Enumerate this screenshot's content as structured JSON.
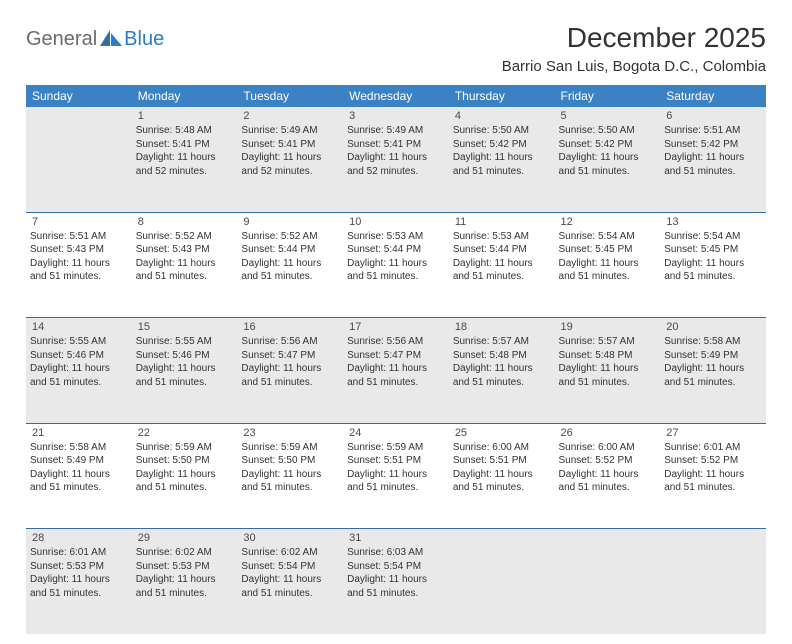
{
  "brand": {
    "general": "General",
    "blue": "Blue"
  },
  "title": "December 2025",
  "location": "Barrio San Luis, Bogota D.C., Colombia",
  "colors": {
    "header_bg": "#3b82c4",
    "header_text": "#ffffff",
    "rule": "#2f6fa8",
    "shade": "#e9e9e9",
    "text": "#333333",
    "logo_gray": "#6b6b6b",
    "logo_blue": "#2f7bbf"
  },
  "day_names": [
    "Sunday",
    "Monday",
    "Tuesday",
    "Wednesday",
    "Thursday",
    "Friday",
    "Saturday"
  ],
  "weeks": [
    {
      "shaded": true,
      "days": [
        {
          "n": "",
          "lines": []
        },
        {
          "n": "1",
          "lines": [
            "Sunrise: 5:48 AM",
            "Sunset: 5:41 PM",
            "Daylight: 11 hours and 52 minutes."
          ]
        },
        {
          "n": "2",
          "lines": [
            "Sunrise: 5:49 AM",
            "Sunset: 5:41 PM",
            "Daylight: 11 hours and 52 minutes."
          ]
        },
        {
          "n": "3",
          "lines": [
            "Sunrise: 5:49 AM",
            "Sunset: 5:41 PM",
            "Daylight: 11 hours and 52 minutes."
          ]
        },
        {
          "n": "4",
          "lines": [
            "Sunrise: 5:50 AM",
            "Sunset: 5:42 PM",
            "Daylight: 11 hours and 51 minutes."
          ]
        },
        {
          "n": "5",
          "lines": [
            "Sunrise: 5:50 AM",
            "Sunset: 5:42 PM",
            "Daylight: 11 hours and 51 minutes."
          ]
        },
        {
          "n": "6",
          "lines": [
            "Sunrise: 5:51 AM",
            "Sunset: 5:42 PM",
            "Daylight: 11 hours and 51 minutes."
          ]
        }
      ]
    },
    {
      "shaded": false,
      "days": [
        {
          "n": "7",
          "lines": [
            "Sunrise: 5:51 AM",
            "Sunset: 5:43 PM",
            "Daylight: 11 hours and 51 minutes."
          ]
        },
        {
          "n": "8",
          "lines": [
            "Sunrise: 5:52 AM",
            "Sunset: 5:43 PM",
            "Daylight: 11 hours and 51 minutes."
          ]
        },
        {
          "n": "9",
          "lines": [
            "Sunrise: 5:52 AM",
            "Sunset: 5:44 PM",
            "Daylight: 11 hours and 51 minutes."
          ]
        },
        {
          "n": "10",
          "lines": [
            "Sunrise: 5:53 AM",
            "Sunset: 5:44 PM",
            "Daylight: 11 hours and 51 minutes."
          ]
        },
        {
          "n": "11",
          "lines": [
            "Sunrise: 5:53 AM",
            "Sunset: 5:44 PM",
            "Daylight: 11 hours and 51 minutes."
          ]
        },
        {
          "n": "12",
          "lines": [
            "Sunrise: 5:54 AM",
            "Sunset: 5:45 PM",
            "Daylight: 11 hours and 51 minutes."
          ]
        },
        {
          "n": "13",
          "lines": [
            "Sunrise: 5:54 AM",
            "Sunset: 5:45 PM",
            "Daylight: 11 hours and 51 minutes."
          ]
        }
      ]
    },
    {
      "shaded": true,
      "days": [
        {
          "n": "14",
          "lines": [
            "Sunrise: 5:55 AM",
            "Sunset: 5:46 PM",
            "Daylight: 11 hours and 51 minutes."
          ]
        },
        {
          "n": "15",
          "lines": [
            "Sunrise: 5:55 AM",
            "Sunset: 5:46 PM",
            "Daylight: 11 hours and 51 minutes."
          ]
        },
        {
          "n": "16",
          "lines": [
            "Sunrise: 5:56 AM",
            "Sunset: 5:47 PM",
            "Daylight: 11 hours and 51 minutes."
          ]
        },
        {
          "n": "17",
          "lines": [
            "Sunrise: 5:56 AM",
            "Sunset: 5:47 PM",
            "Daylight: 11 hours and 51 minutes."
          ]
        },
        {
          "n": "18",
          "lines": [
            "Sunrise: 5:57 AM",
            "Sunset: 5:48 PM",
            "Daylight: 11 hours and 51 minutes."
          ]
        },
        {
          "n": "19",
          "lines": [
            "Sunrise: 5:57 AM",
            "Sunset: 5:48 PM",
            "Daylight: 11 hours and 51 minutes."
          ]
        },
        {
          "n": "20",
          "lines": [
            "Sunrise: 5:58 AM",
            "Sunset: 5:49 PM",
            "Daylight: 11 hours and 51 minutes."
          ]
        }
      ]
    },
    {
      "shaded": false,
      "days": [
        {
          "n": "21",
          "lines": [
            "Sunrise: 5:58 AM",
            "Sunset: 5:49 PM",
            "Daylight: 11 hours and 51 minutes."
          ]
        },
        {
          "n": "22",
          "lines": [
            "Sunrise: 5:59 AM",
            "Sunset: 5:50 PM",
            "Daylight: 11 hours and 51 minutes."
          ]
        },
        {
          "n": "23",
          "lines": [
            "Sunrise: 5:59 AM",
            "Sunset: 5:50 PM",
            "Daylight: 11 hours and 51 minutes."
          ]
        },
        {
          "n": "24",
          "lines": [
            "Sunrise: 5:59 AM",
            "Sunset: 5:51 PM",
            "Daylight: 11 hours and 51 minutes."
          ]
        },
        {
          "n": "25",
          "lines": [
            "Sunrise: 6:00 AM",
            "Sunset: 5:51 PM",
            "Daylight: 11 hours and 51 minutes."
          ]
        },
        {
          "n": "26",
          "lines": [
            "Sunrise: 6:00 AM",
            "Sunset: 5:52 PM",
            "Daylight: 11 hours and 51 minutes."
          ]
        },
        {
          "n": "27",
          "lines": [
            "Sunrise: 6:01 AM",
            "Sunset: 5:52 PM",
            "Daylight: 11 hours and 51 minutes."
          ]
        }
      ]
    },
    {
      "shaded": true,
      "days": [
        {
          "n": "28",
          "lines": [
            "Sunrise: 6:01 AM",
            "Sunset: 5:53 PM",
            "Daylight: 11 hours and 51 minutes."
          ]
        },
        {
          "n": "29",
          "lines": [
            "Sunrise: 6:02 AM",
            "Sunset: 5:53 PM",
            "Daylight: 11 hours and 51 minutes."
          ]
        },
        {
          "n": "30",
          "lines": [
            "Sunrise: 6:02 AM",
            "Sunset: 5:54 PM",
            "Daylight: 11 hours and 51 minutes."
          ]
        },
        {
          "n": "31",
          "lines": [
            "Sunrise: 6:03 AM",
            "Sunset: 5:54 PM",
            "Daylight: 11 hours and 51 minutes."
          ]
        },
        {
          "n": "",
          "lines": []
        },
        {
          "n": "",
          "lines": []
        },
        {
          "n": "",
          "lines": []
        }
      ]
    }
  ]
}
